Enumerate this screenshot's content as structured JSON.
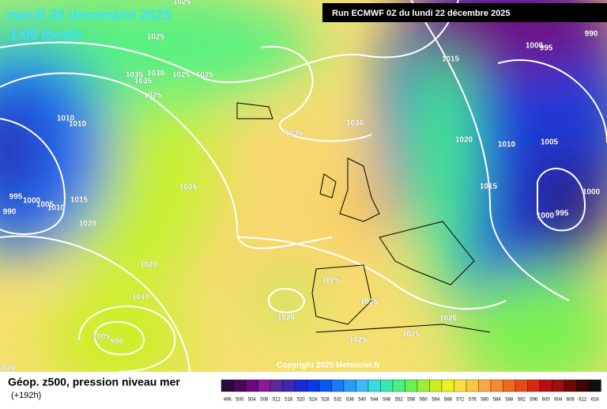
{
  "header": {
    "date": "mardi 30 decembre 2025",
    "time": "1:00 locale"
  },
  "run": "Run ECMWF 0Z du lundi 22 décembre 2025",
  "copyright": "Copyright 2025 Meteociel.fr",
  "legend": {
    "title": "Géop. z500, pression niveau mer",
    "lead": "(+192h)"
  },
  "colorscale": {
    "ticks": [
      496,
      500,
      504,
      508,
      512,
      516,
      520,
      524,
      528,
      532,
      536,
      540,
      544,
      548,
      552,
      556,
      560,
      564,
      568,
      572,
      576,
      580,
      584,
      588,
      592,
      596,
      600,
      604,
      608,
      612,
      616
    ],
    "colors": [
      "#2a0a3a",
      "#4a0a5a",
      "#6a0a7a",
      "#8a1a9a",
      "#5a2a9a",
      "#3a2ab0",
      "#1a2ad0",
      "#0a3ae8",
      "#0a5af0",
      "#1a7af8",
      "#2a9af8",
      "#3abaf8",
      "#3adae0",
      "#3ae8b0",
      "#4af080",
      "#6af050",
      "#9af030",
      "#c8f020",
      "#f0f020",
      "#f8e040",
      "#f8c840",
      "#f8a840",
      "#f88830",
      "#f06820",
      "#e84818",
      "#d82810",
      "#b81010",
      "#981010",
      "#700808",
      "#400404",
      "#101010"
    ]
  },
  "isobars": {
    "labels": [
      1025,
      1025,
      1035,
      1030,
      1025,
      1025,
      1035,
      1025,
      1010,
      1010,
      1035,
      1030,
      1020,
      1010,
      1005,
      1015,
      1000,
      995,
      990,
      1025,
      1015,
      1000,
      995,
      1000,
      995,
      1000,
      1005,
      1010,
      990,
      1015,
      1020,
      1020,
      1010,
      1025,
      1020,
      1025,
      1020,
      1025,
      1025,
      1005,
      990,
      1020
    ]
  }
}
